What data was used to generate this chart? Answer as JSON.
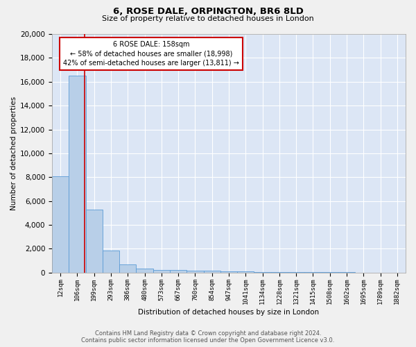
{
  "title1": "6, ROSE DALE, ORPINGTON, BR6 8LD",
  "title2": "Size of property relative to detached houses in London",
  "xlabel": "Distribution of detached houses by size in London",
  "ylabel": "Number of detached properties",
  "categories": [
    "12sqm",
    "106sqm",
    "199sqm",
    "293sqm",
    "386sqm",
    "480sqm",
    "573sqm",
    "667sqm",
    "760sqm",
    "854sqm",
    "947sqm",
    "1041sqm",
    "1134sqm",
    "1228sqm",
    "1321sqm",
    "1415sqm",
    "1508sqm",
    "1602sqm",
    "1695sqm",
    "1789sqm",
    "1882sqm"
  ],
  "values": [
    8100,
    16500,
    5300,
    1850,
    700,
    350,
    220,
    200,
    170,
    150,
    130,
    80,
    60,
    50,
    40,
    30,
    25,
    20,
    15,
    12,
    10
  ],
  "bar_color": "#b8cfe8",
  "bar_edge_color": "#5b9bd5",
  "background_color": "#dce6f5",
  "grid_color": "#ffffff",
  "annotation_text": "6 ROSE DALE: 158sqm\n← 58% of detached houses are smaller (18,998)\n42% of semi-detached houses are larger (13,811) →",
  "annotation_box_color": "#ffffff",
  "annotation_box_edge_color": "#cc0000",
  "vline_x": 1.45,
  "vline_color": "#cc0000",
  "ylim": [
    0,
    20000
  ],
  "yticks": [
    0,
    2000,
    4000,
    6000,
    8000,
    10000,
    12000,
    14000,
    16000,
    18000,
    20000
  ],
  "footer_line1": "Contains HM Land Registry data © Crown copyright and database right 2024.",
  "footer_line2": "Contains public sector information licensed under the Open Government Licence v3.0."
}
